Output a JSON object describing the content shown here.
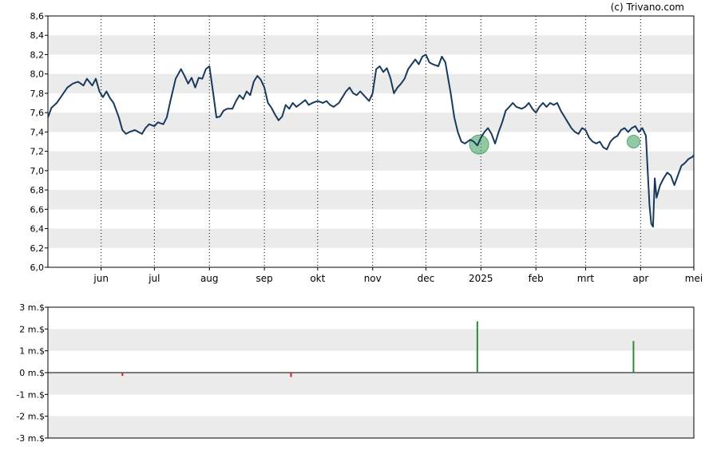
{
  "copyright": "(c) Trivano.com",
  "colors": {
    "price_line": "#1a3a5c",
    "band": "#ebebeb",
    "marker": "#3a9a5a",
    "buy_bar": "#2e8b3e",
    "sell_bar": "#d42020"
  },
  "chart_data": [
    {
      "type": "line",
      "title": "",
      "ylim": [
        6.0,
        8.6
      ],
      "y_ticks": [
        "6,0",
        "6,2",
        "6,4",
        "6,6",
        "6,8",
        "7,0",
        "7,2",
        "7,4",
        "7,6",
        "7,8",
        "8,0",
        "8,2",
        "8,4",
        "8,6"
      ],
      "x_ticks": [
        "jun",
        "jul",
        "aug",
        "sep",
        "okt",
        "nov",
        "dec",
        "2025",
        "feb",
        "mrt",
        "apr",
        "mei"
      ],
      "x_tick_dates": [
        "2024-06-01",
        "2024-07-01",
        "2024-08-01",
        "2024-09-01",
        "2024-10-01",
        "2024-11-01",
        "2024-12-01",
        "2025-01-01",
        "2025-02-01",
        "2025-03-01",
        "2025-04-01",
        "2025-05-01"
      ],
      "x_range": [
        "2024-05-02",
        "2025-05-01"
      ],
      "grid": "horizontal bands, vertical dotted lines at month starts",
      "series": [
        {
          "points": [
            [
              "2024-05-02",
              7.55
            ],
            [
              "2024-05-04",
              7.65
            ],
            [
              "2024-05-07",
              7.7
            ],
            [
              "2024-05-10",
              7.78
            ],
            [
              "2024-05-13",
              7.86
            ],
            [
              "2024-05-16",
              7.9
            ],
            [
              "2024-05-19",
              7.92
            ],
            [
              "2024-05-22",
              7.88
            ],
            [
              "2024-05-24",
              7.95
            ],
            [
              "2024-05-27",
              7.88
            ],
            [
              "2024-05-29",
              7.95
            ],
            [
              "2024-05-31",
              7.82
            ],
            [
              "2024-06-02",
              7.76
            ],
            [
              "2024-06-04",
              7.82
            ],
            [
              "2024-06-06",
              7.75
            ],
            [
              "2024-06-08",
              7.7
            ],
            [
              "2024-06-11",
              7.55
            ],
            [
              "2024-06-13",
              7.42
            ],
            [
              "2024-06-15",
              7.38
            ],
            [
              "2024-06-17",
              7.4
            ],
            [
              "2024-06-20",
              7.42
            ],
            [
              "2024-06-22",
              7.4
            ],
            [
              "2024-06-24",
              7.38
            ],
            [
              "2024-06-26",
              7.44
            ],
            [
              "2024-06-28",
              7.48
            ],
            [
              "2024-07-01",
              7.46
            ],
            [
              "2024-07-03",
              7.5
            ],
            [
              "2024-07-06",
              7.48
            ],
            [
              "2024-07-08",
              7.55
            ],
            [
              "2024-07-10",
              7.72
            ],
            [
              "2024-07-13",
              7.95
            ],
            [
              "2024-07-16",
              8.05
            ],
            [
              "2024-07-18",
              7.98
            ],
            [
              "2024-07-20",
              7.9
            ],
            [
              "2024-07-22",
              7.96
            ],
            [
              "2024-07-24",
              7.86
            ],
            [
              "2024-07-26",
              7.96
            ],
            [
              "2024-07-28",
              7.95
            ],
            [
              "2024-07-30",
              8.05
            ],
            [
              "2024-08-01",
              8.08
            ],
            [
              "2024-08-03",
              7.82
            ],
            [
              "2024-08-05",
              7.55
            ],
            [
              "2024-08-07",
              7.56
            ],
            [
              "2024-08-09",
              7.62
            ],
            [
              "2024-08-11",
              7.64
            ],
            [
              "2024-08-14",
              7.64
            ],
            [
              "2024-08-16",
              7.72
            ],
            [
              "2024-08-18",
              7.78
            ],
            [
              "2024-08-20",
              7.74
            ],
            [
              "2024-08-22",
              7.82
            ],
            [
              "2024-08-24",
              7.78
            ],
            [
              "2024-08-26",
              7.92
            ],
            [
              "2024-08-28",
              7.98
            ],
            [
              "2024-08-30",
              7.94
            ],
            [
              "2024-09-01",
              7.86
            ],
            [
              "2024-09-03",
              7.7
            ],
            [
              "2024-09-05",
              7.65
            ],
            [
              "2024-09-07",
              7.58
            ],
            [
              "2024-09-09",
              7.52
            ],
            [
              "2024-09-11",
              7.56
            ],
            [
              "2024-09-13",
              7.68
            ],
            [
              "2024-09-15",
              7.64
            ],
            [
              "2024-09-17",
              7.7
            ],
            [
              "2024-09-19",
              7.66
            ],
            [
              "2024-09-22",
              7.7
            ],
            [
              "2024-09-24",
              7.73
            ],
            [
              "2024-09-26",
              7.68
            ],
            [
              "2024-09-28",
              7.7
            ],
            [
              "2024-10-01",
              7.72
            ],
            [
              "2024-10-04",
              7.7
            ],
            [
              "2024-10-06",
              7.72
            ],
            [
              "2024-10-08",
              7.68
            ],
            [
              "2024-10-10",
              7.66
            ],
            [
              "2024-10-13",
              7.7
            ],
            [
              "2024-10-15",
              7.76
            ],
            [
              "2024-10-17",
              7.82
            ],
            [
              "2024-10-19",
              7.86
            ],
            [
              "2024-10-21",
              7.8
            ],
            [
              "2024-10-23",
              7.78
            ],
            [
              "2024-10-25",
              7.82
            ],
            [
              "2024-10-27",
              7.78
            ],
            [
              "2024-10-30",
              7.72
            ],
            [
              "2024-11-01",
              7.8
            ],
            [
              "2024-11-03",
              8.05
            ],
            [
              "2024-11-05",
              8.08
            ],
            [
              "2024-11-07",
              8.02
            ],
            [
              "2024-11-09",
              8.06
            ],
            [
              "2024-11-11",
              7.96
            ],
            [
              "2024-11-13",
              7.8
            ],
            [
              "2024-11-15",
              7.86
            ],
            [
              "2024-11-17",
              7.9
            ],
            [
              "2024-11-19",
              7.95
            ],
            [
              "2024-11-21",
              8.05
            ],
            [
              "2024-11-23",
              8.1
            ],
            [
              "2024-11-25",
              8.15
            ],
            [
              "2024-11-27",
              8.1
            ],
            [
              "2024-11-29",
              8.18
            ],
            [
              "2024-12-01",
              8.2
            ],
            [
              "2024-12-03",
              8.12
            ],
            [
              "2024-12-05",
              8.1
            ],
            [
              "2024-12-08",
              8.08
            ],
            [
              "2024-12-10",
              8.18
            ],
            [
              "2024-12-12",
              8.12
            ],
            [
              "2024-12-15",
              7.8
            ],
            [
              "2024-12-17",
              7.55
            ],
            [
              "2024-12-19",
              7.4
            ],
            [
              "2024-12-21",
              7.3
            ],
            [
              "2024-12-23",
              7.28
            ],
            [
              "2024-12-26",
              7.32
            ],
            [
              "2024-12-28",
              7.3
            ],
            [
              "2024-12-30",
              7.26
            ],
            [
              "2025-01-01",
              7.34
            ],
            [
              "2025-01-03",
              7.4
            ],
            [
              "2025-01-05",
              7.44
            ],
            [
              "2025-01-07",
              7.38
            ],
            [
              "2025-01-09",
              7.28
            ],
            [
              "2025-01-11",
              7.4
            ],
            [
              "2025-01-13",
              7.5
            ],
            [
              "2025-01-15",
              7.62
            ],
            [
              "2025-01-17",
              7.66
            ],
            [
              "2025-01-19",
              7.7
            ],
            [
              "2025-01-21",
              7.66
            ],
            [
              "2025-01-24",
              7.64
            ],
            [
              "2025-01-26",
              7.66
            ],
            [
              "2025-01-28",
              7.7
            ],
            [
              "2025-01-30",
              7.64
            ],
            [
              "2025-02-01",
              7.6
            ],
            [
              "2025-02-03",
              7.66
            ],
            [
              "2025-02-05",
              7.7
            ],
            [
              "2025-02-07",
              7.66
            ],
            [
              "2025-02-09",
              7.7
            ],
            [
              "2025-02-11",
              7.68
            ],
            [
              "2025-02-13",
              7.7
            ],
            [
              "2025-02-15",
              7.62
            ],
            [
              "2025-02-17",
              7.56
            ],
            [
              "2025-02-19",
              7.5
            ],
            [
              "2025-02-21",
              7.44
            ],
            [
              "2025-02-23",
              7.4
            ],
            [
              "2025-02-25",
              7.38
            ],
            [
              "2025-02-27",
              7.44
            ],
            [
              "2025-03-01",
              7.42
            ],
            [
              "2025-03-03",
              7.34
            ],
            [
              "2025-03-05",
              7.3
            ],
            [
              "2025-03-07",
              7.28
            ],
            [
              "2025-03-09",
              7.3
            ],
            [
              "2025-03-11",
              7.24
            ],
            [
              "2025-03-13",
              7.22
            ],
            [
              "2025-03-15",
              7.3
            ],
            [
              "2025-03-17",
              7.34
            ],
            [
              "2025-03-19",
              7.36
            ],
            [
              "2025-03-21",
              7.42
            ],
            [
              "2025-03-23",
              7.44
            ],
            [
              "2025-03-25",
              7.4
            ],
            [
              "2025-03-27",
              7.44
            ],
            [
              "2025-03-29",
              7.46
            ],
            [
              "2025-03-31",
              7.4
            ],
            [
              "2025-04-02",
              7.44
            ],
            [
              "2025-04-04",
              7.36
            ],
            [
              "2025-04-05",
              7.0
            ],
            [
              "2025-04-06",
              6.65
            ],
            [
              "2025-04-07",
              6.45
            ],
            [
              "2025-04-08",
              6.42
            ],
            [
              "2025-04-09",
              6.92
            ],
            [
              "2025-04-10",
              6.72
            ],
            [
              "2025-04-12",
              6.85
            ],
            [
              "2025-04-14",
              6.92
            ],
            [
              "2025-04-16",
              6.98
            ],
            [
              "2025-04-18",
              6.95
            ],
            [
              "2025-04-20",
              6.85
            ],
            [
              "2025-04-22",
              6.95
            ],
            [
              "2025-04-24",
              7.05
            ],
            [
              "2025-04-26",
              7.08
            ],
            [
              "2025-04-28",
              7.12
            ],
            [
              "2025-04-30",
              7.14
            ],
            [
              "2025-05-01",
              7.16
            ]
          ]
        }
      ],
      "markers": [
        {
          "x": "2024-12-31",
          "y": 7.27,
          "size": "large"
        },
        {
          "x": "2025-03-28",
          "y": 7.3,
          "size": "small"
        }
      ]
    },
    {
      "type": "bar",
      "title": "",
      "ylim": [
        -3,
        3
      ],
      "y_ticks": [
        "3 m.$",
        "2 m.$",
        "1 m.$",
        "0 m.$",
        "-1 m.$",
        "-2 m.$",
        "-3 m.$"
      ],
      "x_range": [
        "2024-05-02",
        "2025-05-01"
      ],
      "unit": "m.$",
      "bars": [
        {
          "x": "2024-06-13",
          "value": -0.15,
          "kind": "sell"
        },
        {
          "x": "2024-09-16",
          "value": -0.2,
          "kind": "sell"
        },
        {
          "x": "2024-12-30",
          "value": 2.35,
          "kind": "buy"
        },
        {
          "x": "2025-03-28",
          "value": 1.45,
          "kind": "buy"
        }
      ]
    }
  ]
}
